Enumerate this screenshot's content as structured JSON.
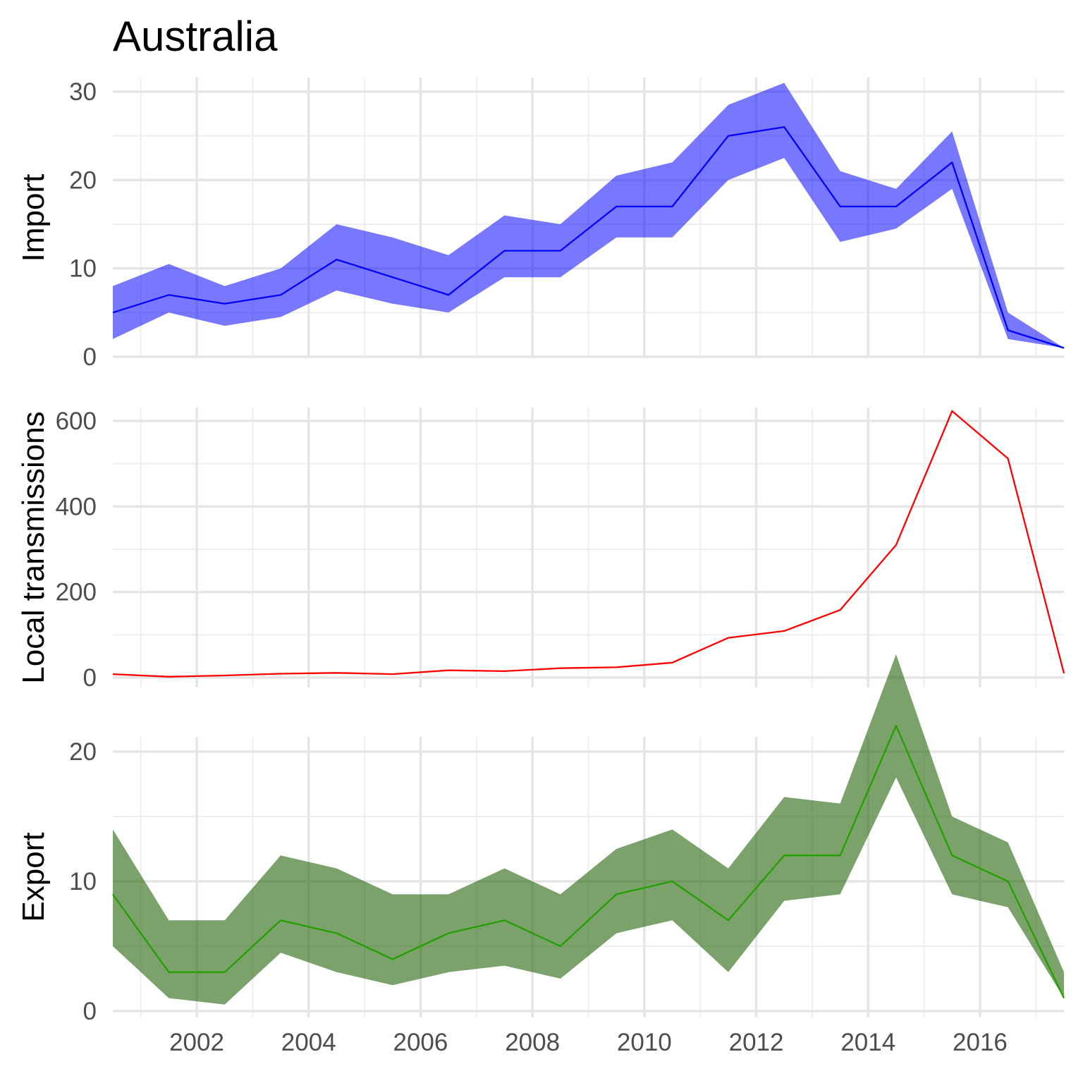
{
  "chart_data": {
    "type": "line",
    "title": "Australia",
    "x": [
      2000.5,
      2001.5,
      2002.5,
      2003.5,
      2004.5,
      2005.5,
      2006.5,
      2007.5,
      2008.5,
      2009.5,
      2010.5,
      2011.5,
      2012.5,
      2013.5,
      2014.5,
      2015.5,
      2016.5,
      2017.5
    ],
    "xlim": [
      2000.5,
      2017.5
    ],
    "x_ticks": [
      2002,
      2004,
      2006,
      2008,
      2010,
      2012,
      2014,
      2016
    ],
    "x_tick_labels": [
      "2002",
      "2004",
      "2006",
      "2008",
      "2010",
      "2012",
      "2014",
      "2016"
    ],
    "grid": true,
    "panels": [
      {
        "ylabel": "Import",
        "color": "#0000ff",
        "fill": "#0000ff",
        "fill_opacity": 0.53,
        "ylim": [
          0,
          31
        ],
        "y_ticks": [
          0,
          10,
          20,
          30
        ],
        "y_tick_labels": [
          "0",
          "10",
          "20",
          "30"
        ],
        "y": [
          5,
          7,
          6,
          7,
          11,
          9,
          7,
          12,
          12,
          17,
          17,
          25,
          26,
          17,
          17,
          22,
          3,
          1
        ],
        "lower": [
          2,
          5,
          3.5,
          4.5,
          7.5,
          6,
          5,
          9,
          9,
          13.5,
          13.5,
          20,
          22.5,
          13,
          14.5,
          19,
          2,
          1
        ],
        "upper": [
          8,
          10.5,
          8,
          10,
          15,
          13.5,
          11.5,
          16,
          15,
          20.5,
          22,
          28.5,
          31,
          21,
          19,
          25.5,
          5,
          1
        ]
      },
      {
        "ylabel": "Local transmissions",
        "color": "#ff0000",
        "ylim": [
          0,
          625
        ],
        "y_ticks": [
          0,
          200,
          400,
          600
        ],
        "y_tick_labels": [
          "0",
          "200",
          "400",
          "600"
        ],
        "y": [
          8,
          2,
          5,
          9,
          11,
          8,
          17,
          15,
          22,
          24,
          35,
          93,
          109,
          158,
          310,
          623,
          512,
          10
        ]
      },
      {
        "ylabel": "Export",
        "color": "#22a000",
        "fill": "#2e6b15",
        "fill_opacity": 0.63,
        "ylim": [
          0,
          27
        ],
        "y_ticks": [
          0,
          10,
          20
        ],
        "y_tick_labels": [
          "0",
          "10",
          "20"
        ],
        "y": [
          9,
          3,
          3,
          7,
          6,
          4,
          6,
          7,
          5,
          9,
          10,
          7,
          12,
          12,
          22,
          12,
          10,
          1
        ],
        "lower": [
          5,
          1,
          0.5,
          4.5,
          3,
          2,
          3,
          3.5,
          2.5,
          6,
          7,
          3,
          8.5,
          9,
          18,
          9,
          8,
          1
        ],
        "upper": [
          14,
          7,
          7,
          12,
          11,
          9,
          9,
          11,
          9,
          12.5,
          14,
          11,
          16.5,
          16,
          27.5,
          15,
          13,
          3
        ]
      }
    ]
  }
}
